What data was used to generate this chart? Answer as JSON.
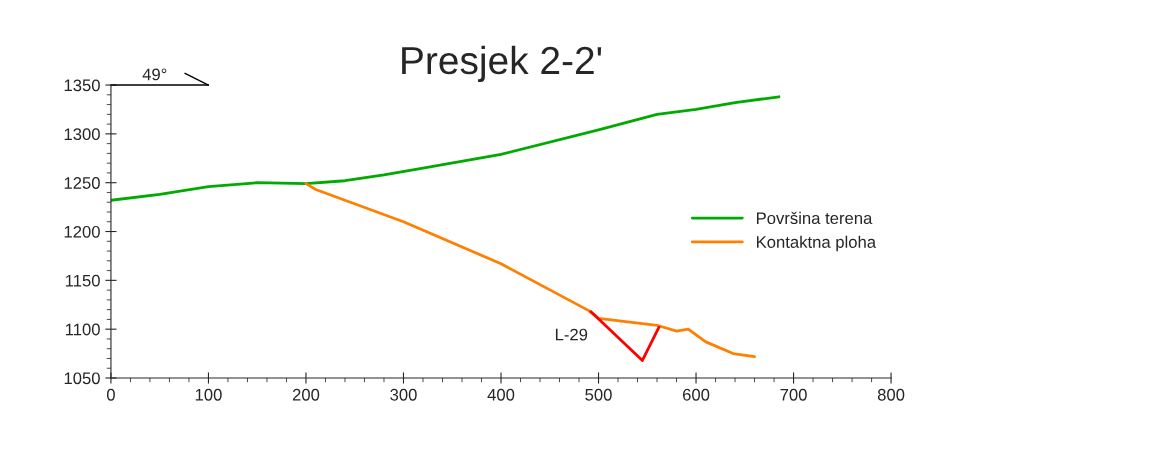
{
  "chart_data": {
    "type": "line",
    "title": "Presjek 2-2'",
    "xlim": [
      0,
      800
    ],
    "xticks": [
      0,
      100,
      200,
      300,
      400,
      500,
      600,
      700,
      800
    ],
    "ylim": [
      1050,
      1350
    ],
    "yticks": [
      1050,
      1100,
      1150,
      1200,
      1250,
      1300,
      1350
    ],
    "grid": false,
    "legend": "right",
    "marker": "none",
    "line_style": "solid",
    "series": [
      {
        "name": "Površina terena",
        "color": "#00aa00",
        "x": [
          0,
          50,
          100,
          150,
          200,
          240,
          280,
          320,
          400,
          500,
          530,
          560,
          600,
          640,
          685
        ],
        "values": [
          1232,
          1238,
          1246,
          1250,
          1249,
          1252,
          1258,
          1265,
          1279,
          1304,
          1312,
          1320,
          1325,
          1332,
          1338
        ]
      },
      {
        "name": "Kontaktna ploha",
        "color": "#ff8000",
        "x": [
          200,
          210,
          300,
          400,
          490,
          500,
          560,
          580,
          592,
          610,
          638,
          660
        ],
        "values": [
          1249,
          1243,
          1210,
          1167,
          1119,
          1111,
          1104,
          1098,
          1100,
          1087,
          1075,
          1072
        ]
      },
      {
        "color": "#ff0000",
        "x": [
          492,
          545,
          562
        ],
        "values": [
          1118,
          1068,
          1102
        ]
      }
    ],
    "annotations": [
      "49°",
      "L-29"
    ]
  }
}
